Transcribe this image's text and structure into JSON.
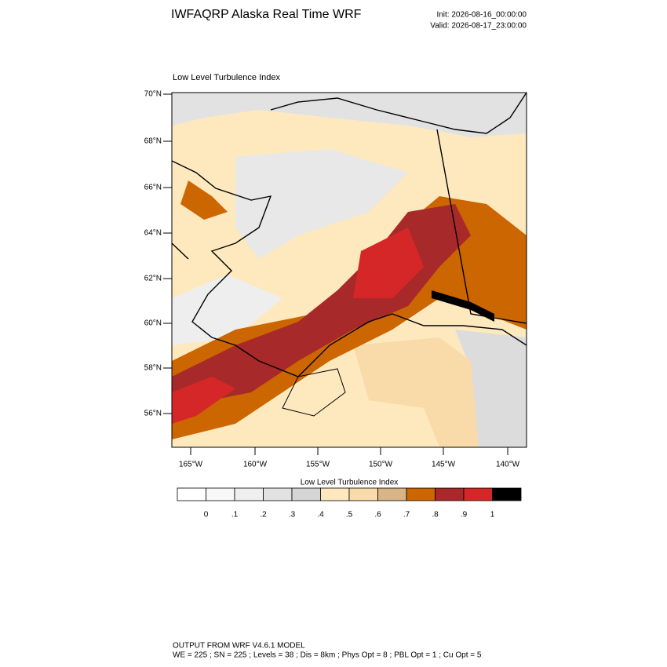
{
  "header": {
    "title": "IWFAQRP Alaska Real Time WRF",
    "init": "Init: 2026-08-16_00:00:00",
    "valid": "Valid: 2026-08-17_23:00:00"
  },
  "map": {
    "title": "Low Level Turbulence Index",
    "lat_labels": [
      "70°N",
      "68°N",
      "66°N",
      "64°N",
      "62°N",
      "60°N",
      "58°N",
      "56°N"
    ],
    "lon_labels": [
      "165°W",
      "160°W",
      "155°W",
      "150°W",
      "145°W",
      "140°W"
    ]
  },
  "colorbar": {
    "title": "Low Level Turbulence Index",
    "labels": [
      "0",
      ".1",
      ".2",
      ".3",
      ".4",
      ".5",
      ".6",
      ".7",
      ".8",
      ".9",
      "1"
    ],
    "colors": [
      "#ffffff",
      "#f8f8f8",
      "#efefef",
      "#e2e2e2",
      "#d5d5d5",
      "#fee9bf",
      "#f8dba8",
      "#d8b487",
      "#cc6600",
      "#a8292a",
      "#d62728",
      "#000000"
    ]
  },
  "footer": {
    "line1": "OUTPUT FROM WRF V4.6.1 MODEL",
    "line2": "WE = 225 ; SN = 225 ; Levels = 38 ; Dis = 8km ; Phys Opt = 8 ; PBL Opt = 1 ; Cu Opt = 5"
  }
}
